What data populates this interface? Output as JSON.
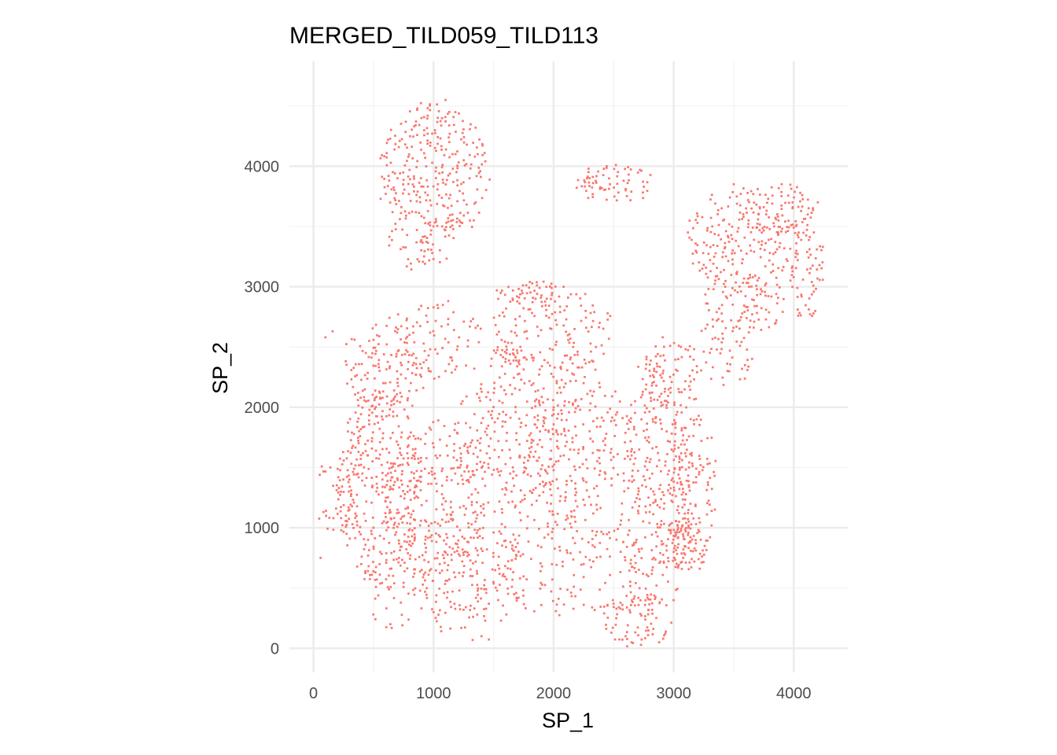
{
  "chart_data": {
    "type": "scatter",
    "title": "MERGED_TILD059_TILD113",
    "xlabel": "SP_1",
    "ylabel": "SP_2",
    "xlim": [
      -200,
      4450
    ],
    "ylim": [
      -200,
      4870
    ],
    "x_ticks": [
      0,
      1000,
      2000,
      3000,
      4000
    ],
    "y_ticks": [
      0,
      1000,
      2000,
      3000,
      4000
    ],
    "x_tick_labels": [
      "0",
      "1000",
      "2000",
      "3000",
      "4000"
    ],
    "y_tick_labels": [
      "0",
      "1000",
      "2000",
      "3000",
      "4000"
    ],
    "grid": true,
    "legend": "none",
    "point_color": "#F8766D",
    "point_size_data_units": 18,
    "series": [
      {
        "values": [
          {
            "x": 100,
            "y": 2580
          },
          {
            "x": 160,
            "y": 2630
          },
          {
            "x": 60,
            "y": 750
          },
          {
            "x": 300,
            "y": 1400
          },
          {
            "x": 450,
            "y": 1600
          },
          {
            "x": 600,
            "y": 2200
          },
          {
            "x": 700,
            "y": 3900
          },
          {
            "x": 900,
            "y": 4400
          },
          {
            "x": 1100,
            "y": 4550
          },
          {
            "x": 1300,
            "y": 3900
          },
          {
            "x": 1700,
            "y": 2450
          },
          {
            "x": 1850,
            "y": 2900
          },
          {
            "x": 2300,
            "y": 3900
          },
          {
            "x": 2600,
            "y": 3800
          },
          {
            "x": 2250,
            "y": 2200
          },
          {
            "x": 2650,
            "y": 1600
          },
          {
            "x": 3000,
            "y": 800
          },
          {
            "x": 3150,
            "y": 1600
          },
          {
            "x": 3500,
            "y": 3850
          },
          {
            "x": 3900,
            "y": 3850
          },
          {
            "x": 4200,
            "y": 3700
          },
          {
            "x": 3850,
            "y": 2700
          },
          {
            "x": 1650,
            "y": 1300
          },
          {
            "x": 2100,
            "y": 1250
          },
          {
            "x": 1000,
            "y": 300
          },
          {
            "x": 2600,
            "y": 100
          },
          {
            "x": 1400,
            "y": 100
          },
          {
            "x": 500,
            "y": 1000
          },
          {
            "x": 800,
            "y": 2600
          },
          {
            "x": 1100,
            "y": 2300
          }
        ]
      }
    ],
    "regions": [
      {
        "cx": 550,
        "cy": 1350,
        "rx": 360,
        "ry": 800,
        "d": 0.34
      },
      {
        "cx": 1000,
        "cy": 1200,
        "rx": 430,
        "ry": 700,
        "d": 0.24
      },
      {
        "cx": 1300,
        "cy": 600,
        "rx": 480,
        "ry": 550,
        "d": 0.24
      },
      {
        "cx": 600,
        "cy": 2350,
        "rx": 350,
        "ry": 450,
        "d": 0.28
      },
      {
        "cx": 1050,
        "cy": 2550,
        "rx": 400,
        "ry": 350,
        "d": 0.2
      },
      {
        "cx": 1600,
        "cy": 1700,
        "rx": 450,
        "ry": 600,
        "d": 0.26
      },
      {
        "cx": 2150,
        "cy": 1750,
        "rx": 450,
        "ry": 700,
        "d": 0.28
      },
      {
        "cx": 2000,
        "cy": 2650,
        "rx": 520,
        "ry": 350,
        "d": 0.24
      },
      {
        "cx": 2100,
        "cy": 700,
        "rx": 650,
        "ry": 450,
        "d": 0.18
      },
      {
        "cx": 2700,
        "cy": 250,
        "rx": 300,
        "ry": 260,
        "d": 0.35
      },
      {
        "cx": 2850,
        "cy": 1250,
        "rx": 320,
        "ry": 1000,
        "d": 0.32
      },
      {
        "cx": 3150,
        "cy": 1350,
        "rx": 200,
        "ry": 750,
        "d": 0.3
      },
      {
        "cx": 2950,
        "cy": 2300,
        "rx": 270,
        "ry": 300,
        "d": 0.3
      },
      {
        "cx": 3450,
        "cy": 2650,
        "rx": 250,
        "ry": 500,
        "d": 0.2
      },
      {
        "cx": 1000,
        "cy": 3950,
        "rx": 470,
        "ry": 600,
        "d": 0.36
      },
      {
        "cx": 900,
        "cy": 3400,
        "rx": 300,
        "ry": 280,
        "d": 0.18
      },
      {
        "cx": 2500,
        "cy": 3850,
        "rx": 330,
        "ry": 170,
        "d": 0.38
      },
      {
        "cx": 3550,
        "cy": 3400,
        "rx": 450,
        "ry": 450,
        "d": 0.3
      },
      {
        "cx": 3900,
        "cy": 3600,
        "rx": 300,
        "ry": 260,
        "d": 0.32
      },
      {
        "cx": 4100,
        "cy": 3200,
        "rx": 180,
        "ry": 500,
        "d": 0.26
      },
      {
        "cx": 3750,
        "cy": 2900,
        "rx": 200,
        "ry": 300,
        "d": 0.24
      },
      {
        "cx": 1800,
        "cy": 2950,
        "rx": 300,
        "ry": 100,
        "d": 0.45
      },
      {
        "cx": 1650,
        "cy": 2400,
        "rx": 200,
        "ry": 110,
        "d": 0.55
      },
      {
        "cx": 3100,
        "cy": 850,
        "rx": 220,
        "ry": 220,
        "d": 0.4
      },
      {
        "cx": 650,
        "cy": 500,
        "rx": 250,
        "ry": 350,
        "d": 0.18
      },
      {
        "cx": 200,
        "cy": 1250,
        "rx": 180,
        "ry": 350,
        "d": 0.28
      }
    ]
  }
}
